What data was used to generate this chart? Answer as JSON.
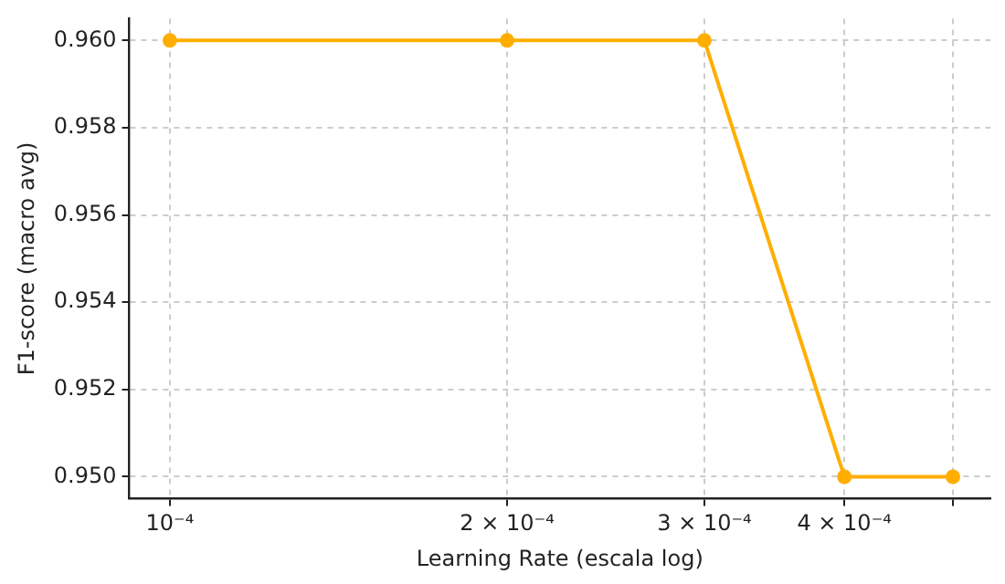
{
  "chart_data": {
    "type": "line",
    "xlabel": "Learning Rate (escala log)",
    "ylabel": "F1-score (macro avg)",
    "log": "x",
    "x": [
      0.0001,
      0.0002,
      0.0003,
      0.0004,
      0.0005
    ],
    "series": [
      {
        "color": "#ffae00",
        "values": [
          0.96,
          0.96,
          0.96,
          0.95,
          0.95
        ]
      }
    ],
    "xlim": [
      9.2e-05,
      0.00054
    ],
    "xticks": [
      {
        "value": 0.0001,
        "label": "10⁻⁴"
      },
      {
        "value": 0.0002,
        "label": "2 × 10⁻⁴"
      },
      {
        "value": 0.0003,
        "label": "3 × 10⁻⁴"
      },
      {
        "value": 0.0004,
        "label": "4 × 10⁻⁴"
      },
      {
        "value": 0.0005,
        "label": null
      }
    ],
    "ylim": [
      0.9495,
      0.9605
    ],
    "yticks": [
      {
        "value": 0.95,
        "label": "0.950"
      },
      {
        "value": 0.952,
        "label": "0.952"
      },
      {
        "value": 0.954,
        "label": "0.954"
      },
      {
        "value": 0.956,
        "label": "0.956"
      },
      {
        "value": 0.958,
        "label": "0.958"
      },
      {
        "value": 0.96,
        "label": "0.960"
      }
    ],
    "grid": true,
    "marker": "circle",
    "line_style": "solid",
    "legend": false
  }
}
